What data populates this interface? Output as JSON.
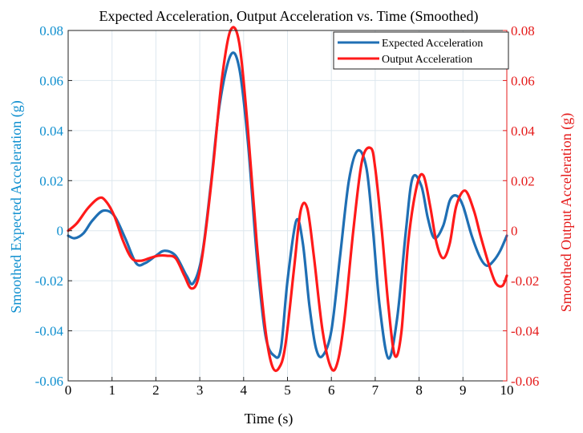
{
  "chart_data": {
    "type": "line",
    "title": "Expected Acceleration, Output Acceleration vs. Time (Smoothed)",
    "xlabel": "Time (s)",
    "ylabel_left": "Smoothed Expected Acceleration (g)",
    "ylabel_right": "Smoothed Output Acceleration (g)",
    "xlim": [
      0,
      10
    ],
    "ylim": [
      -0.06,
      0.08
    ],
    "x_ticks": [
      "0",
      "1",
      "2",
      "3",
      "4",
      "5",
      "6",
      "7",
      "8",
      "9",
      "10"
    ],
    "y_ticks_left": [
      "0.08",
      "0.06",
      "0.04",
      "0.02",
      "0",
      "-0.02",
      "-0.04",
      "-0.06"
    ],
    "y_ticks_right": [
      "0.08",
      "0.06",
      "0.04",
      "0.02",
      "0",
      "-0.02",
      "-0.04",
      "-0.06"
    ],
    "grid": true,
    "legend": "top-right",
    "colors": {
      "left_axis": "#0f8fcf",
      "right_axis": "#e51b1b",
      "grid": "#dde7ee",
      "frame": "#222222"
    },
    "series": [
      {
        "name": "Expected Acceleration",
        "color": "#1f6fb4",
        "x": [
          0,
          0.15,
          0.35,
          0.55,
          0.8,
          1.05,
          1.3,
          1.55,
          1.75,
          2.0,
          2.2,
          2.45,
          2.7,
          2.85,
          3.05,
          3.25,
          3.45,
          3.7,
          3.9,
          4.1,
          4.3,
          4.5,
          4.7,
          4.85,
          5.0,
          5.2,
          5.35,
          5.5,
          5.65,
          5.8,
          6.0,
          6.2,
          6.4,
          6.6,
          6.8,
          6.95,
          7.1,
          7.3,
          7.5,
          7.7,
          7.85,
          8.05,
          8.2,
          8.35,
          8.55,
          8.7,
          8.85,
          9.0,
          9.2,
          9.4,
          9.55,
          9.7,
          9.85,
          10.0
        ],
        "values": [
          -0.002,
          -0.003,
          -0.001,
          0.004,
          0.008,
          0.006,
          -0.003,
          -0.013,
          -0.013,
          -0.01,
          -0.008,
          -0.01,
          -0.018,
          -0.021,
          -0.01,
          0.018,
          0.05,
          0.07,
          0.065,
          0.035,
          -0.01,
          -0.042,
          -0.05,
          -0.047,
          -0.02,
          0.004,
          -0.005,
          -0.03,
          -0.047,
          -0.05,
          -0.04,
          -0.01,
          0.02,
          0.032,
          0.025,
          0.0,
          -0.03,
          -0.051,
          -0.035,
          0.0,
          0.021,
          0.018,
          0.005,
          -0.003,
          0.002,
          0.012,
          0.014,
          0.01,
          -0.002,
          -0.011,
          -0.014,
          -0.012,
          -0.008,
          -0.002
        ]
      },
      {
        "name": "Output Acceleration",
        "color": "#ff1a1a",
        "x": [
          0,
          0.2,
          0.45,
          0.7,
          0.85,
          1.05,
          1.25,
          1.45,
          1.65,
          1.85,
          2.05,
          2.25,
          2.45,
          2.65,
          2.8,
          2.95,
          3.1,
          3.3,
          3.5,
          3.7,
          3.9,
          4.1,
          4.3,
          4.5,
          4.65,
          4.8,
          4.95,
          5.15,
          5.3,
          5.45,
          5.6,
          5.8,
          6.0,
          6.15,
          6.3,
          6.5,
          6.7,
          6.9,
          7.0,
          7.15,
          7.3,
          7.45,
          7.6,
          7.75,
          7.95,
          8.1,
          8.25,
          8.4,
          8.55,
          8.7,
          8.85,
          9.05,
          9.25,
          9.4,
          9.6,
          9.75,
          9.9,
          10.0
        ],
        "values": [
          0.0,
          0.003,
          0.009,
          0.013,
          0.012,
          0.006,
          -0.004,
          -0.011,
          -0.012,
          -0.011,
          -0.01,
          -0.01,
          -0.011,
          -0.018,
          -0.023,
          -0.02,
          -0.005,
          0.025,
          0.06,
          0.08,
          0.075,
          0.04,
          -0.005,
          -0.04,
          -0.054,
          -0.055,
          -0.046,
          -0.015,
          0.008,
          0.009,
          -0.01,
          -0.04,
          -0.055,
          -0.052,
          -0.035,
          0.0,
          0.028,
          0.033,
          0.025,
          0.0,
          -0.03,
          -0.05,
          -0.04,
          -0.005,
          0.018,
          0.022,
          0.01,
          -0.005,
          -0.011,
          -0.005,
          0.01,
          0.016,
          0.008,
          -0.002,
          -0.014,
          -0.021,
          -0.022,
          -0.018
        ]
      }
    ]
  }
}
